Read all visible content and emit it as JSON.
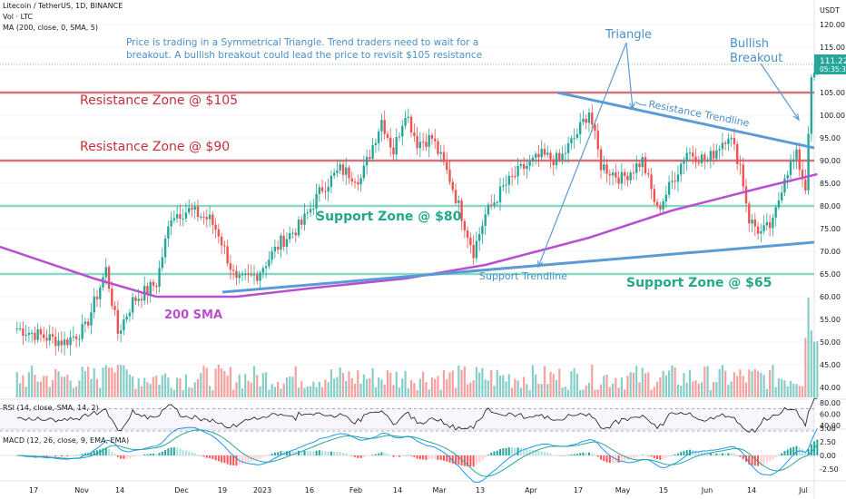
{
  "header": {
    "symbol_line": "Litecoin / TetherUS, 1D, BINANCE",
    "vol_line": "Vol · LTC",
    "ma_line": "MA (200, close, 0, SMA, 5)",
    "currency": "USDT"
  },
  "rsi_label": "RSI (14, close, SMA, 14, 2)",
  "macd_label": "MACD (12, 26, close, 9, EMA, EMA)",
  "price_badge": {
    "price": "111.22",
    "countdown": "05:35:39"
  },
  "annotations": {
    "note": [
      "Price is trading in a Symmetrical Triangle. Trend traders need to wait for a",
      "breakout. A bullish breakout could lead the price to revisit $105 resistance"
    ],
    "triangle": "Triangle",
    "bullish": [
      "Bullish",
      "Breakout"
    ],
    "resistance_trendline": "Resistance Trendline",
    "support_trendline": "Support Trendline",
    "res105": "Resistance Zone @ $105",
    "res90": "Resistance Zone @ $90",
    "sup80": "Support Zone @ $80",
    "sup65": "Support Zone @ $65",
    "sma": "200 SMA"
  },
  "colors": {
    "up": "#26a69a",
    "down": "#ef5350",
    "sma": "#b84fd0",
    "trend": "#5b9bd5",
    "resistance": "#d05a63",
    "support": "#7ed6c0",
    "note": "#4a90c8"
  },
  "chart_data": {
    "type": "candlestick",
    "price_axis": {
      "ticks": [
        40,
        45,
        50,
        55,
        60,
        65,
        70,
        75,
        80,
        85,
        90,
        95,
        100,
        105,
        110,
        115,
        120
      ],
      "ylim": [
        37,
        122
      ]
    },
    "rsi_axis": {
      "ticks": [
        80,
        60,
        40
      ]
    },
    "macd_axis": {
      "ticks": [
        5,
        2.5,
        0,
        -2.5
      ]
    },
    "time_axis": [
      "17",
      "Nov",
      "14",
      "Dec",
      "19",
      "2023",
      "16",
      "Feb",
      "14",
      "Mar",
      "13",
      "Apr",
      "17",
      "May",
      "15",
      "Jun",
      "14",
      "Jul"
    ],
    "last_price": 111.22,
    "zones": {
      "resistance": [
        105,
        90
      ],
      "support": [
        80,
        65
      ]
    },
    "trendlines": {
      "resistance": {
        "from": {
          "x": "Apr",
          "y": 105
        },
        "to": {
          "x": "Jul",
          "y": 93
        }
      },
      "support": {
        "from": {
          "x": "Dec 19",
          "y": 61
        },
        "to": {
          "x": "Jul",
          "y": 72
        }
      }
    },
    "price_anchors": [
      {
        "t": "Oct 6",
        "p": 53
      },
      {
        "t": "Oct 16",
        "p": 51
      },
      {
        "t": "Oct 22",
        "p": 50
      },
      {
        "t": "Oct 29",
        "p": 53
      },
      {
        "t": "Nov 5",
        "p": 66
      },
      {
        "t": "Nov 9",
        "p": 52
      },
      {
        "t": "Nov 14",
        "p": 59
      },
      {
        "t": "Nov 22",
        "p": 63
      },
      {
        "t": "Nov 27",
        "p": 78
      },
      {
        "t": "Dec 3",
        "p": 79
      },
      {
        "t": "Dec 10",
        "p": 77
      },
      {
        "t": "Dec 13",
        "p": 74
      },
      {
        "t": "Dec 19",
        "p": 63
      },
      {
        "t": "Dec 26",
        "p": 65
      },
      {
        "t": "Jan 3",
        "p": 72
      },
      {
        "t": "Jan 10",
        "p": 76
      },
      {
        "t": "Jan 17",
        "p": 84
      },
      {
        "t": "Jan 23",
        "p": 88
      },
      {
        "t": "Jan 30",
        "p": 86
      },
      {
        "t": "Feb 6",
        "p": 99
      },
      {
        "t": "Feb 10",
        "p": 92
      },
      {
        "t": "Feb 14",
        "p": 101
      },
      {
        "t": "Feb 18",
        "p": 94
      },
      {
        "t": "Feb 23",
        "p": 95
      },
      {
        "t": "Mar 1",
        "p": 86
      },
      {
        "t": "Mar 9",
        "p": 70
      },
      {
        "t": "Mar 13",
        "p": 78
      },
      {
        "t": "Mar 19",
        "p": 84
      },
      {
        "t": "Mar 25",
        "p": 88
      },
      {
        "t": "Apr 1",
        "p": 91
      },
      {
        "t": "Apr 7",
        "p": 90
      },
      {
        "t": "Apr 13",
        "p": 96
      },
      {
        "t": "Apr 17",
        "p": 101
      },
      {
        "t": "Apr 21",
        "p": 89
      },
      {
        "t": "Apr 28",
        "p": 86
      },
      {
        "t": "May 5",
        "p": 90
      },
      {
        "t": "May 10",
        "p": 79
      },
      {
        "t": "May 14",
        "p": 84
      },
      {
        "t": "May 20",
        "p": 92
      },
      {
        "t": "May 27",
        "p": 90
      },
      {
        "t": "Jun 3",
        "p": 96
      },
      {
        "t": "Jun 7",
        "p": 89
      },
      {
        "t": "Jun 10",
        "p": 77
      },
      {
        "t": "Jun 14",
        "p": 74
      },
      {
        "t": "Jun 18",
        "p": 76
      },
      {
        "t": "Jun 22",
        "p": 87
      },
      {
        "t": "Jun 26",
        "p": 91
      },
      {
        "t": "Jun 29",
        "p": 84
      },
      {
        "t": "Jun 30",
        "p": 97
      },
      {
        "t": "Jul 1",
        "p": 107
      },
      {
        "t": "Jul 3",
        "p": 111
      }
    ],
    "sma200": [
      {
        "t": "Oct 1",
        "p": 71
      },
      {
        "t": "Nov 1",
        "p": 64
      },
      {
        "t": "Nov 22",
        "p": 60
      },
      {
        "t": "Dec 19",
        "p": 60
      },
      {
        "t": "Jan 15",
        "p": 62
      },
      {
        "t": "Feb 14",
        "p": 64
      },
      {
        "t": "Mar 13",
        "p": 67
      },
      {
        "t": "Apr 17",
        "p": 73
      },
      {
        "t": "May 15",
        "p": 79
      },
      {
        "t": "Jun 14",
        "p": 84
      },
      {
        "t": "Jul 3",
        "p": 87
      }
    ]
  }
}
